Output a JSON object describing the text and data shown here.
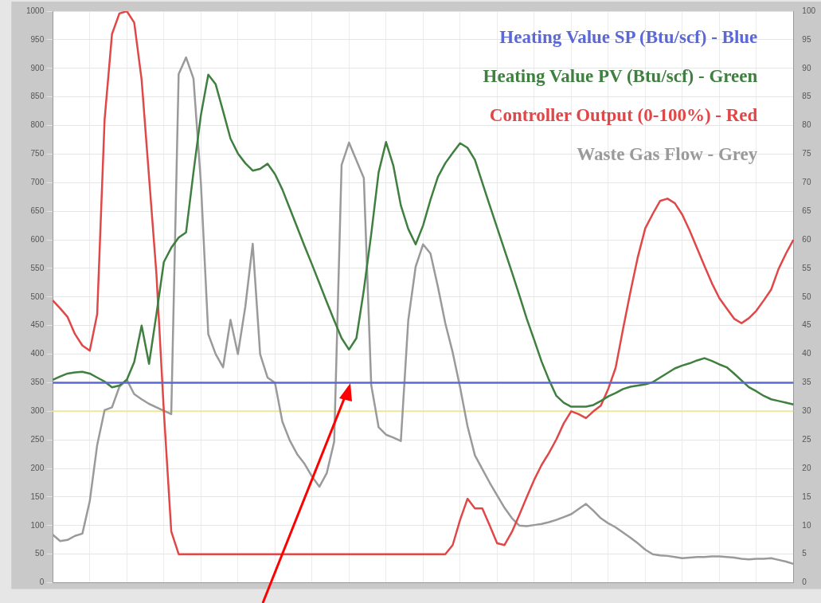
{
  "chart_data": {
    "type": "line",
    "grid": true,
    "categories": [
      null,
      null,
      null,
      null,
      null,
      null,
      null,
      null,
      null,
      null,
      null,
      null,
      null,
      null,
      null,
      null,
      null,
      null,
      null,
      null,
      null,
      null,
      null,
      null,
      null,
      null,
      null,
      null,
      null,
      null,
      null,
      null,
      null,
      null,
      null,
      null,
      null,
      null,
      null,
      null,
      null,
      null,
      null,
      null,
      null,
      null,
      null,
      null,
      null,
      null,
      null,
      null,
      null,
      null,
      null,
      null,
      null,
      null,
      null,
      null,
      null,
      null,
      null,
      null,
      null,
      null,
      null,
      null,
      null,
      null,
      null,
      null,
      null,
      null,
      null,
      null,
      null,
      null,
      null,
      null,
      null,
      null,
      null,
      null,
      null,
      null,
      null,
      null,
      null,
      null,
      null,
      null,
      null,
      null,
      null,
      null,
      null,
      null,
      null,
      null,
      null
    ],
    "ylim": [
      0,
      1000
    ],
    "yticks": [
      0,
      50,
      100,
      150,
      200,
      250,
      300,
      350,
      400,
      450,
      500,
      550,
      600,
      650,
      700,
      750,
      800,
      850,
      900,
      950,
      1000
    ],
    "y2lim": [
      0,
      100
    ],
    "y2ticks": [
      0,
      5,
      10,
      15,
      20,
      25,
      30,
      35,
      40,
      45,
      50,
      55,
      60,
      65,
      70,
      75,
      80,
      85,
      90,
      95,
      100
    ],
    "ref_lines": [
      {
        "axis": "y",
        "value": 300,
        "color": "#ece79a"
      }
    ],
    "series": [
      {
        "name": "Heating Value SP (Btu/scf) - Blue",
        "color": "#5b68d6",
        "values": [
          350,
          350,
          350,
          350,
          350,
          350,
          350,
          350,
          350,
          350,
          350,
          350,
          350,
          350,
          350,
          350,
          350,
          350,
          350,
          350,
          350,
          350,
          350,
          350,
          350,
          350,
          350,
          350,
          350,
          350,
          350,
          350,
          350,
          350,
          350,
          350,
          350,
          350,
          350,
          350,
          350,
          350,
          350,
          350,
          350,
          350,
          350,
          350,
          350,
          350,
          350,
          350,
          350,
          350,
          350,
          350,
          350,
          350,
          350,
          350,
          350,
          350,
          350,
          350,
          350,
          350,
          350,
          350,
          350,
          350,
          350,
          350,
          350,
          350,
          350,
          350,
          350,
          350,
          350,
          350,
          350,
          350,
          350,
          350,
          350,
          350,
          350,
          350,
          350,
          350,
          350,
          350,
          350,
          350,
          350,
          350,
          350,
          350,
          350,
          350,
          350
        ]
      },
      {
        "name": "Heating Value PV (Btu/scf) - Green",
        "color": "#3f7f3f",
        "values": [
          355,
          361,
          366,
          368,
          369,
          366,
          359,
          352,
          342,
          345,
          355,
          386,
          450,
          383,
          470,
          561,
          586,
          604,
          613,
          718,
          818,
          889,
          872,
          825,
          777,
          751,
          734,
          721,
          724,
          733,
          715,
          688,
          655,
          622,
          589,
          557,
          524,
          491,
          459,
          428,
          408,
          428,
          512,
          610,
          718,
          771,
          729,
          660,
          619,
          592,
          625,
          670,
          710,
          734,
          752,
          769,
          761,
          740,
          700,
          660,
          621,
          582,
          543,
          503,
          462,
          425,
          387,
          355,
          327,
          315,
          308,
          308,
          308,
          311,
          318,
          326,
          332,
          339,
          343,
          345,
          347,
          351,
          359,
          367,
          375,
          380,
          384,
          389,
          393,
          388,
          382,
          377,
          366,
          354,
          342,
          335,
          327,
          321,
          318,
          315,
          312
        ]
      },
      {
        "name": "Controller Output (0-100%) - Red",
        "color": "#e04848",
        "axis": "y2",
        "values": [
          49.4,
          48,
          46.5,
          43.5,
          41.5,
          40.6,
          47,
          81,
          96,
          99.6,
          100,
          98,
          88,
          71,
          54,
          30,
          9,
          5,
          5,
          5,
          5,
          5,
          5,
          5,
          5,
          5,
          5,
          5,
          5,
          5,
          5,
          5,
          5,
          5,
          5,
          5,
          5,
          5,
          5,
          5,
          5,
          5,
          5,
          5,
          5,
          5,
          5,
          5,
          5,
          5,
          5,
          5,
          5,
          5,
          6.6,
          11,
          14.7,
          13,
          13,
          10,
          6.9,
          6.6,
          8.9,
          11.9,
          15,
          18,
          20.6,
          22.7,
          25.1,
          27.9,
          30,
          29.5,
          28.8,
          30,
          31,
          33.9,
          37.6,
          44.4,
          50.9,
          57,
          62,
          64.5,
          66.8,
          67.2,
          66.4,
          64.4,
          61.6,
          58.5,
          55.4,
          52.4,
          49.8,
          48,
          46.2,
          45.4,
          46.3,
          47.6,
          49.4,
          51.3,
          54.9,
          57.6,
          60
        ]
      },
      {
        "name": "Waste Gas Flow - Grey",
        "color": "#9a9a9a",
        "values": [
          84,
          73,
          75,
          82,
          86,
          143,
          241,
          302,
          307,
          343,
          355,
          330,
          321,
          313,
          307,
          301,
          295,
          890,
          919,
          882,
          700,
          435,
          400,
          377,
          460,
          400,
          483,
          593,
          400,
          359,
          350,
          282,
          249,
          225,
          208,
          186,
          168,
          192,
          247,
          731,
          770,
          739,
          708,
          346,
          272,
          259,
          254,
          248,
          459,
          553,
          592,
          576,
          518,
          454,
          403,
          342,
          274,
          223,
          199,
          175,
          153,
          131,
          113,
          100,
          99,
          101,
          103,
          106,
          110,
          115,
          120,
          129,
          138,
          126,
          113,
          104,
          97,
          88,
          79,
          69,
          58,
          50,
          48,
          47,
          45,
          43,
          44,
          45,
          45,
          46,
          46,
          45,
          44,
          42,
          41,
          42,
          42,
          43,
          40,
          37,
          33
        ]
      }
    ]
  }
}
